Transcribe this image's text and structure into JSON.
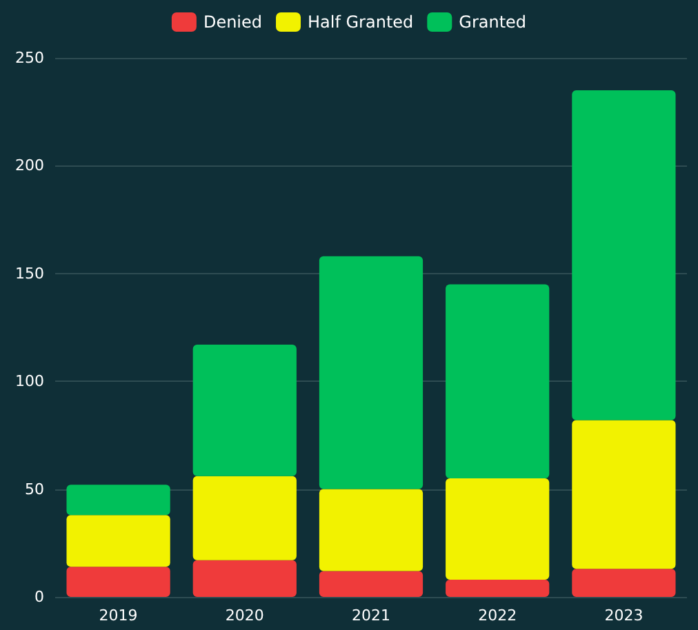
{
  "chart_data": {
    "type": "bar",
    "stacked": true,
    "categories": [
      "2019",
      "2020",
      "2021",
      "2022",
      "2023"
    ],
    "series": [
      {
        "name": "Denied",
        "color": "#ef3b3b",
        "values": [
          14,
          17,
          12,
          8,
          13
        ]
      },
      {
        "name": "Half Granted",
        "color": "#f2f200",
        "values": [
          24,
          39,
          38,
          47,
          69
        ]
      },
      {
        "name": "Granted",
        "color": "#00c05a",
        "values": [
          14,
          61,
          108,
          90,
          153
        ]
      }
    ],
    "ylim": [
      0,
      250
    ],
    "yticks": [
      0,
      50,
      100,
      150,
      200,
      250
    ],
    "grid": "y",
    "legend": "top"
  }
}
